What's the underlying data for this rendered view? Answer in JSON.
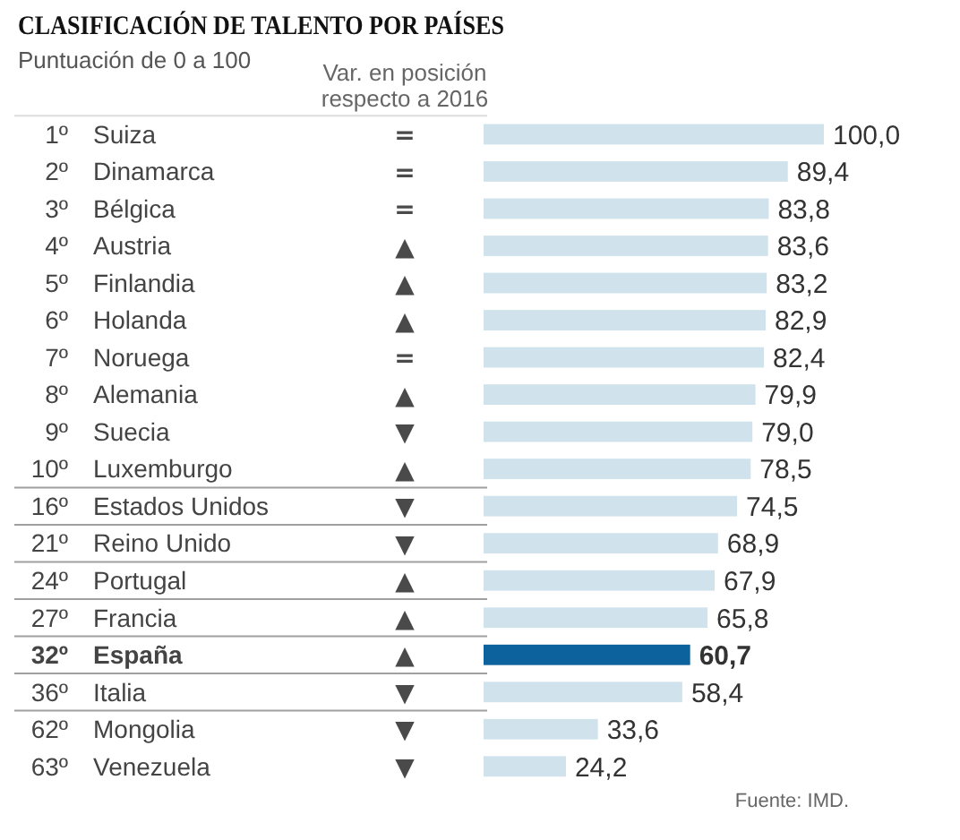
{
  "chart_data": {
    "type": "bar",
    "orientation": "horizontal",
    "title": "CLASIFICACIÓN DE TALENTO POR PAÍSES",
    "subtitle": "Puntuación de 0 a 100",
    "categories": [
      "Suiza",
      "Dinamarca",
      "Bélgica",
      "Austria",
      "Finlandia",
      "Holanda",
      "Noruega",
      "Alemania",
      "Suecia",
      "Luxemburgo",
      "Estados Unidos",
      "Reino Unido",
      "Portugal",
      "Francia",
      "España",
      "Italia",
      "Mongolia",
      "Venezuela"
    ],
    "values": [
      100.0,
      89.4,
      83.8,
      83.6,
      83.2,
      82.9,
      82.4,
      79.9,
      79.0,
      78.5,
      74.5,
      68.9,
      67.9,
      65.8,
      60.7,
      58.4,
      33.6,
      24.2
    ],
    "value_labels": [
      "100,0",
      "89,4",
      "83,8",
      "83,6",
      "83,2",
      "82,9",
      "82,4",
      "79,9",
      "79,0",
      "78,5",
      "74,5",
      "68,9",
      "67,9",
      "65,8",
      "60,7",
      "58,4",
      "33,6",
      "24,2"
    ],
    "color": "#d0e3ec",
    "colors": [
      "#d0e3ec",
      "#d0e3ec",
      "#d0e3ec",
      "#d0e3ec",
      "#d0e3ec",
      "#d0e3ec",
      "#d0e3ec",
      "#d0e3ec",
      "#d0e3ec",
      "#d0e3ec",
      "#d0e3ec",
      "#d0e3ec",
      "#d0e3ec",
      "#d0e3ec",
      "#0c629c",
      "#d0e3ec",
      "#d0e3ec",
      "#d0e3ec"
    ],
    "annotations": [
      "Var. en posición respecto a 2016",
      "1º",
      "2º",
      "3º",
      "4º",
      "5º",
      "6º",
      "7º",
      "8º",
      "9º",
      "10º",
      "16º",
      "21º",
      "24º",
      "27º",
      "32º",
      "36º",
      "62º",
      "63º",
      "=",
      "=",
      "=",
      "▲",
      "▲",
      "▲",
      "=",
      "▲",
      "▼",
      "▲",
      "▼",
      "▼",
      "▲",
      "▲",
      "▲",
      "▼",
      "▼",
      "▼",
      "Fuente: IMD."
    ]
  }
}
